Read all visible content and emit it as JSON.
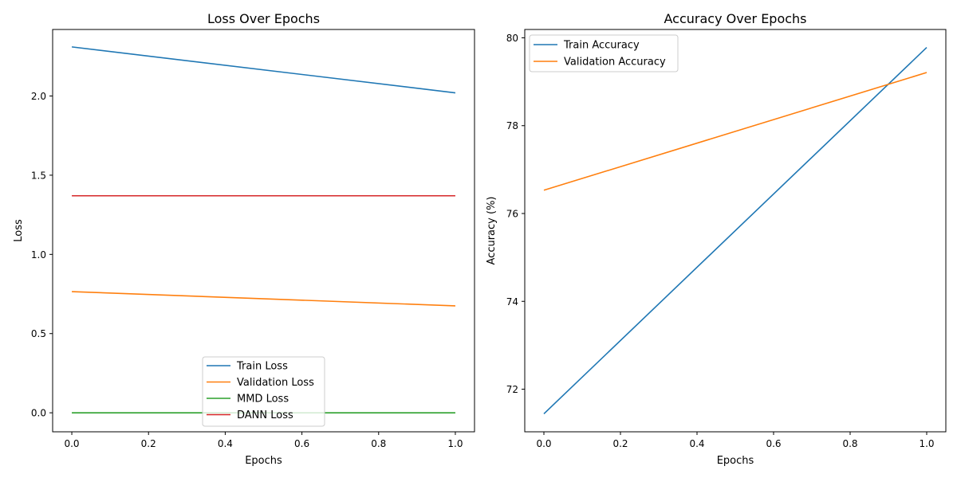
{
  "chart_data": [
    {
      "type": "line",
      "title": "Loss Over Epochs",
      "xlabel": "Epochs",
      "ylabel": "Loss",
      "xlim": [
        -0.05,
        1.05
      ],
      "ylim": [
        -0.12,
        2.42
      ],
      "xticks": [
        "0.0",
        "0.2",
        "0.4",
        "0.6",
        "0.8",
        "1.0"
      ],
      "yticks": [
        "0.0",
        "0.5",
        "1.0",
        "1.5",
        "2.0"
      ],
      "legend": "lower-center",
      "x": [
        0,
        1
      ],
      "series": [
        {
          "name": "Train Loss",
          "color": "#1f77b4",
          "values": [
            2.31,
            2.02
          ]
        },
        {
          "name": "Validation Loss",
          "color": "#ff7f0e",
          "values": [
            0.765,
            0.675
          ]
        },
        {
          "name": "MMD Loss",
          "color": "#2ca02c",
          "values": [
            0.0,
            0.0
          ]
        },
        {
          "name": "DANN Loss",
          "color": "#d62728",
          "values": [
            1.37,
            1.37
          ]
        }
      ]
    },
    {
      "type": "line",
      "title": "Accuracy Over Epochs",
      "xlabel": "Epochs",
      "ylabel": "Accuracy (%)",
      "xlim": [
        -0.05,
        1.05
      ],
      "ylim": [
        71.03,
        80.19
      ],
      "xticks": [
        "0.0",
        "0.2",
        "0.4",
        "0.6",
        "0.8",
        "1.0"
      ],
      "yticks": [
        "72",
        "74",
        "76",
        "78",
        "80"
      ],
      "legend": "upper-left",
      "x": [
        0,
        1
      ],
      "series": [
        {
          "name": "Train Accuracy",
          "color": "#1f77b4",
          "values": [
            71.44,
            79.78
          ]
        },
        {
          "name": "Validation Accuracy",
          "color": "#ff7f0e",
          "values": [
            76.53,
            79.21
          ]
        }
      ]
    }
  ]
}
